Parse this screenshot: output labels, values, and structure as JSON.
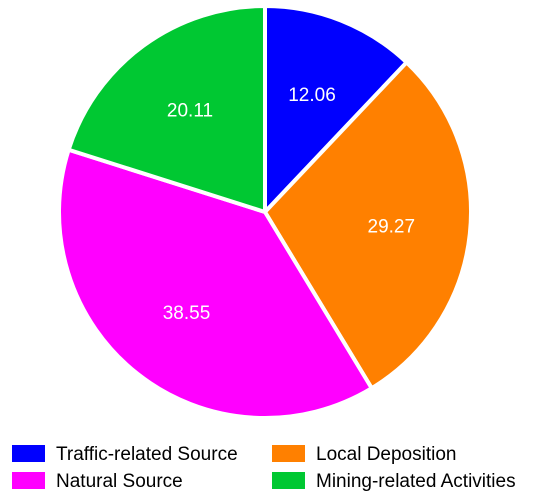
{
  "chart_data": {
    "type": "pie",
    "title": "",
    "start_angle_deg": 0,
    "direction": "clockwise",
    "slices": [
      {
        "label": "Traffic-related Source",
        "value": 12.06,
        "color": "#0000ff"
      },
      {
        "label": "Local Deposition",
        "value": 29.27,
        "color": "#ff8000"
      },
      {
        "label": "Natural Source",
        "value": 38.55,
        "color": "#ff00ff"
      },
      {
        "label": "Mining-related Activities",
        "value": 20.11,
        "color": "#00c832"
      }
    ],
    "data_labels": [
      "12.06",
      "29.27",
      "38.55",
      "20.11"
    ],
    "legend": {
      "position": "bottom",
      "columns": 2,
      "order": [
        0,
        1,
        2,
        3
      ]
    },
    "edge_color": "#ffffff"
  }
}
